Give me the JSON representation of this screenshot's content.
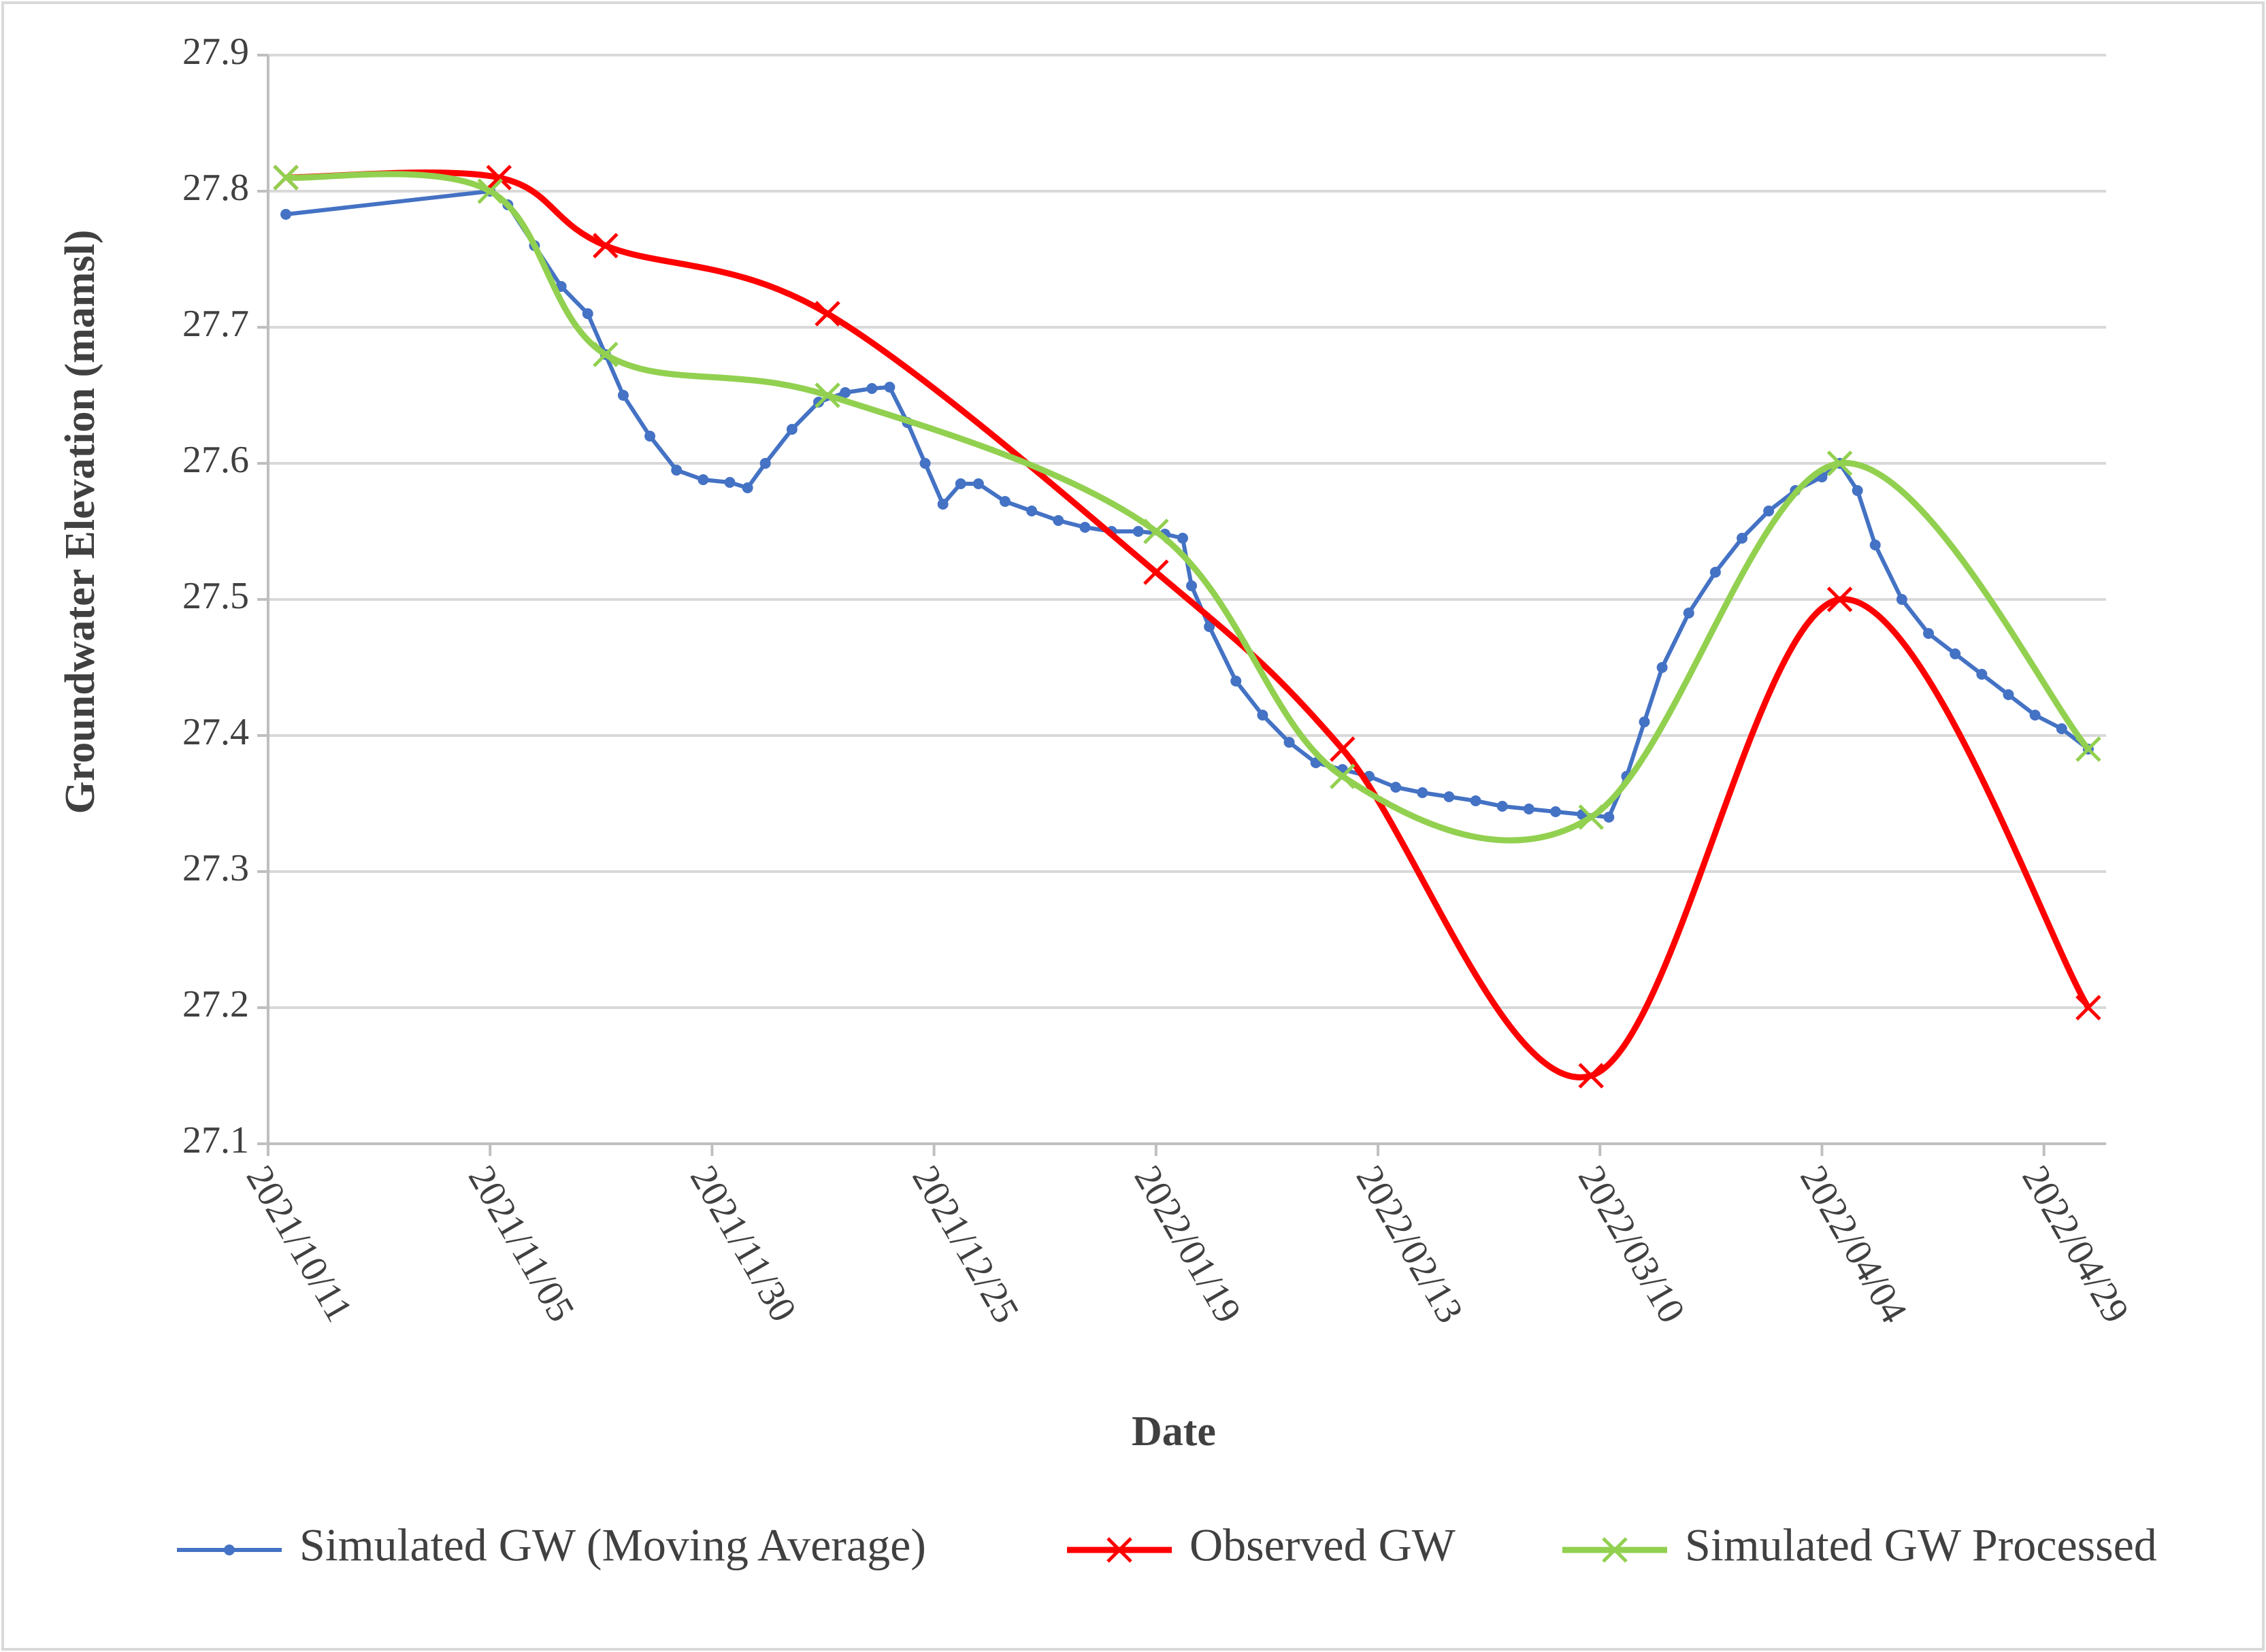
{
  "chart_data": {
    "type": "line",
    "x_label": "Date",
    "y_label": "Groundwater Elevation (mamsl)",
    "xlim": [
      "2021/10/11",
      "2022/05/06"
    ],
    "xticks": [
      "2021/10/11",
      "2021/11/05",
      "2021/11/30",
      "2021/12/25",
      "2022/01/19",
      "2022/02/13",
      "2022/03/10",
      "2022/04/04",
      "2022/04/29"
    ],
    "ylim": [
      27.1,
      27.9
    ],
    "yticks": [
      27.1,
      27.2,
      27.3,
      27.4,
      27.5,
      27.6,
      27.7,
      27.8,
      27.9
    ],
    "grid": true,
    "legend": "bottom",
    "series": [
      {
        "name": "Simulated GW (Moving Average)",
        "color": "#4472c4",
        "marker": "circle",
        "smooth": false,
        "x": [
          "2021/10/13",
          "2021/11/05",
          "2021/11/07",
          "2021/11/10",
          "2021/11/13",
          "2021/11/16",
          "2021/11/18",
          "2021/11/20",
          "2021/11/23",
          "2021/11/26",
          "2021/11/29",
          "2021/12/02",
          "2021/12/04",
          "2021/12/06",
          "2021/12/09",
          "2021/12/12",
          "2021/12/15",
          "2021/12/18",
          "2021/12/20",
          "2021/12/22",
          "2021/12/24",
          "2021/12/26",
          "2021/12/28",
          "2021/12/30",
          "2022/01/02",
          "2022/01/05",
          "2022/01/08",
          "2022/01/11",
          "2022/01/14",
          "2022/01/17",
          "2022/01/20",
          "2022/01/22",
          "2022/01/23",
          "2022/01/25",
          "2022/01/28",
          "2022/01/31",
          "2022/02/03",
          "2022/02/06",
          "2022/02/09",
          "2022/02/12",
          "2022/02/15",
          "2022/02/18",
          "2022/02/21",
          "2022/02/24",
          "2022/02/27",
          "2022/03/02",
          "2022/03/05",
          "2022/03/08",
          "2022/03/11",
          "2022/03/13",
          "2022/03/15",
          "2022/03/17",
          "2022/03/20",
          "2022/03/23",
          "2022/03/26",
          "2022/03/29",
          "2022/04/01",
          "2022/04/04",
          "2022/04/06",
          "2022/04/08",
          "2022/04/10",
          "2022/04/13",
          "2022/04/16",
          "2022/04/19",
          "2022/04/22",
          "2022/04/25",
          "2022/04/28",
          "2022/05/01",
          "2022/05/04"
        ],
        "values": [
          27.783,
          27.8,
          27.79,
          27.76,
          27.73,
          27.71,
          27.68,
          27.65,
          27.62,
          27.595,
          27.588,
          27.586,
          27.582,
          27.6,
          27.625,
          27.645,
          27.652,
          27.655,
          27.656,
          27.63,
          27.6,
          27.57,
          27.585,
          27.585,
          27.572,
          27.565,
          27.558,
          27.553,
          27.55,
          27.55,
          27.548,
          27.545,
          27.51,
          27.48,
          27.44,
          27.415,
          27.395,
          27.38,
          27.375,
          27.37,
          27.362,
          27.358,
          27.355,
          27.352,
          27.348,
          27.346,
          27.344,
          27.342,
          27.34,
          27.37,
          27.41,
          27.45,
          27.49,
          27.52,
          27.545,
          27.565,
          27.58,
          27.59,
          27.6,
          27.58,
          27.54,
          27.5,
          27.475,
          27.46,
          27.445,
          27.43,
          27.415,
          27.405,
          27.39
        ]
      },
      {
        "name": "Observed GW",
        "color": "#ff0000",
        "marker": "x",
        "smooth": true,
        "x": [
          "2021/10/13",
          "2021/11/06",
          "2021/11/18",
          "2021/12/13",
          "2022/01/19",
          "2022/02/09",
          "2022/03/09",
          "2022/04/06",
          "2022/05/04"
        ],
        "values": [
          27.81,
          27.81,
          27.76,
          27.71,
          27.52,
          27.39,
          27.15,
          27.5,
          27.2
        ]
      },
      {
        "name": "Simulated GW Processed",
        "color": "#92d050",
        "marker": "x",
        "smooth": true,
        "x": [
          "2021/10/13",
          "2021/11/05",
          "2021/11/18",
          "2021/12/13",
          "2022/01/19",
          "2022/02/09",
          "2022/03/09",
          "2022/04/06",
          "2022/05/04"
        ],
        "values": [
          27.81,
          27.8,
          27.68,
          27.65,
          27.55,
          27.37,
          27.34,
          27.6,
          27.39
        ]
      }
    ]
  }
}
